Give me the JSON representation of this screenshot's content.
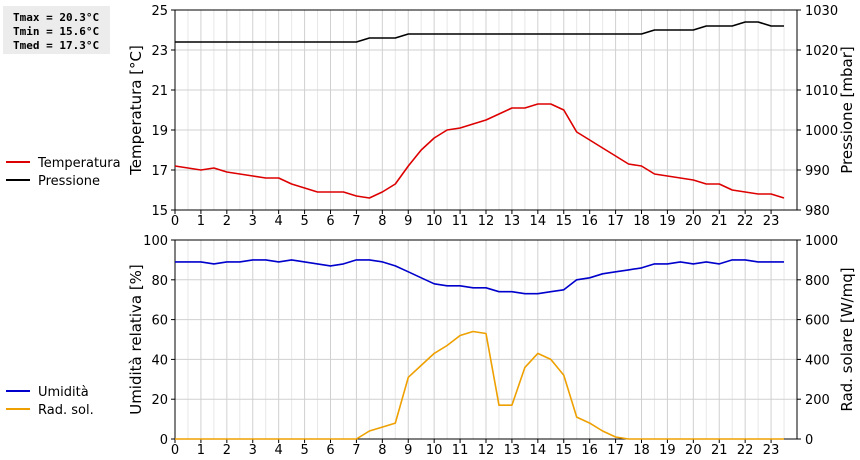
{
  "stats": {
    "tmax": "Tmax = 20.3°C",
    "tmin": "Tmin = 15.6°C",
    "tmed": "Tmed = 17.3°C"
  },
  "chart_data": [
    {
      "type": "line",
      "x_ticks": [
        "0",
        "1",
        "2",
        "3",
        "4",
        "5",
        "6",
        "7",
        "8",
        "9",
        "10",
        "11",
        "12",
        "13",
        "14",
        "15",
        "16",
        "17",
        "18",
        "19",
        "20",
        "21",
        "22",
        "23"
      ],
      "xlim": [
        0,
        24
      ],
      "ylabel": "Temperatura [°C]",
      "ylabel_right": "Pressione [mbar]",
      "ylim": [
        15,
        25
      ],
      "ylim_right": [
        980,
        1030
      ],
      "y_ticks": [
        "15",
        "17",
        "19",
        "21",
        "23",
        "25"
      ],
      "y_ticks_right": [
        "980",
        "990",
        "1000",
        "1010",
        "1020",
        "1030"
      ],
      "grid": true,
      "legend_position": "left",
      "series": [
        {
          "name": "Temperatura",
          "color": "#dd0000",
          "axis": "left",
          "x": [
            0,
            0.5,
            1,
            1.5,
            2,
            2.5,
            3,
            3.5,
            4,
            4.5,
            5,
            5.5,
            6,
            6.5,
            7,
            7.5,
            8,
            8.5,
            9,
            9.5,
            10,
            10.5,
            11,
            11.5,
            12,
            12.5,
            13,
            13.5,
            14,
            14.5,
            15,
            15.5,
            16,
            16.5,
            17,
            17.5,
            18,
            18.5,
            19,
            19.5,
            20,
            20.5,
            21,
            21.5,
            22,
            22.5,
            23,
            23.5
          ],
          "values": [
            17.2,
            17.1,
            17.0,
            17.1,
            16.9,
            16.8,
            16.7,
            16.6,
            16.6,
            16.3,
            16.1,
            15.9,
            15.9,
            15.9,
            15.7,
            15.6,
            15.9,
            16.3,
            17.2,
            18.0,
            18.6,
            19.0,
            19.1,
            19.3,
            19.5,
            19.8,
            20.1,
            20.1,
            20.3,
            20.3,
            20.0,
            18.9,
            18.5,
            18.1,
            17.7,
            17.3,
            17.2,
            16.8,
            16.7,
            16.6,
            16.5,
            16.3,
            16.3,
            16.0,
            15.9,
            15.8,
            15.8,
            15.6
          ]
        },
        {
          "name": "Pressione",
          "color": "#000000",
          "axis": "right",
          "x": [
            0,
            7,
            7.5,
            8.5,
            9,
            17.5,
            18,
            18.5,
            19.5,
            20,
            20.5,
            21.5,
            22,
            22.5,
            23,
            23.5
          ],
          "values": [
            1022,
            1022,
            1023,
            1023,
            1024,
            1024,
            1024,
            1025,
            1025,
            1025,
            1026,
            1026,
            1027,
            1027,
            1026,
            1026
          ]
        }
      ]
    },
    {
      "type": "line",
      "x_ticks": [
        "0",
        "1",
        "2",
        "3",
        "4",
        "5",
        "6",
        "7",
        "8",
        "9",
        "10",
        "11",
        "12",
        "13",
        "14",
        "15",
        "16",
        "17",
        "18",
        "19",
        "20",
        "21",
        "22",
        "23"
      ],
      "xlim": [
        0,
        24
      ],
      "ylabel": "Umidità relativa [%]",
      "ylabel_right": "Rad. solare [W/mq]",
      "ylim": [
        0,
        100
      ],
      "ylim_right": [
        0,
        1000
      ],
      "y_ticks": [
        "0",
        "20",
        "40",
        "60",
        "80",
        "100"
      ],
      "y_ticks_right": [
        "0",
        "200",
        "400",
        "600",
        "800",
        "1000"
      ],
      "grid": true,
      "legend_position": "left",
      "series": [
        {
          "name": "Umidità",
          "color": "#0000cc",
          "axis": "left",
          "x": [
            0,
            0.5,
            1,
            1.5,
            2,
            2.5,
            3,
            3.5,
            4,
            4.5,
            5,
            5.5,
            6,
            6.5,
            7,
            7.5,
            8,
            8.5,
            9,
            9.5,
            10,
            10.5,
            11,
            11.5,
            12,
            12.5,
            13,
            13.5,
            14,
            14.5,
            15,
            15.5,
            16,
            16.5,
            17,
            17.5,
            18,
            18.5,
            19,
            19.5,
            20,
            20.5,
            21,
            21.5,
            22,
            22.5,
            23,
            23.5
          ],
          "values": [
            89,
            89,
            89,
            88,
            89,
            89,
            90,
            90,
            89,
            90,
            89,
            88,
            87,
            88,
            90,
            90,
            89,
            87,
            84,
            81,
            78,
            77,
            77,
            76,
            76,
            74,
            74,
            73,
            73,
            74,
            75,
            80,
            81,
            83,
            84,
            85,
            86,
            88,
            88,
            89,
            88,
            89,
            88,
            90,
            90,
            89,
            89,
            89
          ]
        },
        {
          "name": "Rad. sol.",
          "color": "#eea000",
          "axis": "right",
          "x": [
            0,
            0.5,
            1,
            1.5,
            2,
            2.5,
            3,
            3.5,
            4,
            4.5,
            5,
            5.5,
            6,
            6.5,
            7,
            7.5,
            8,
            8.5,
            9,
            9.5,
            10,
            10.5,
            11,
            11.5,
            12,
            12.5,
            13,
            13.5,
            14,
            14.5,
            15,
            15.5,
            16,
            16.5,
            17,
            17.5,
            18,
            18.5,
            19,
            19.5,
            20,
            20.5,
            21,
            21.5,
            22,
            22.5,
            23,
            23.5
          ],
          "values": [
            0,
            0,
            0,
            0,
            0,
            0,
            0,
            0,
            0,
            0,
            0,
            0,
            0,
            0,
            0,
            40,
            60,
            80,
            310,
            370,
            430,
            470,
            520,
            540,
            530,
            170,
            170,
            360,
            430,
            400,
            320,
            110,
            80,
            40,
            10,
            0,
            0,
            0,
            0,
            0,
            0,
            0,
            0,
            0,
            0,
            0,
            0,
            0
          ]
        }
      ]
    }
  ]
}
